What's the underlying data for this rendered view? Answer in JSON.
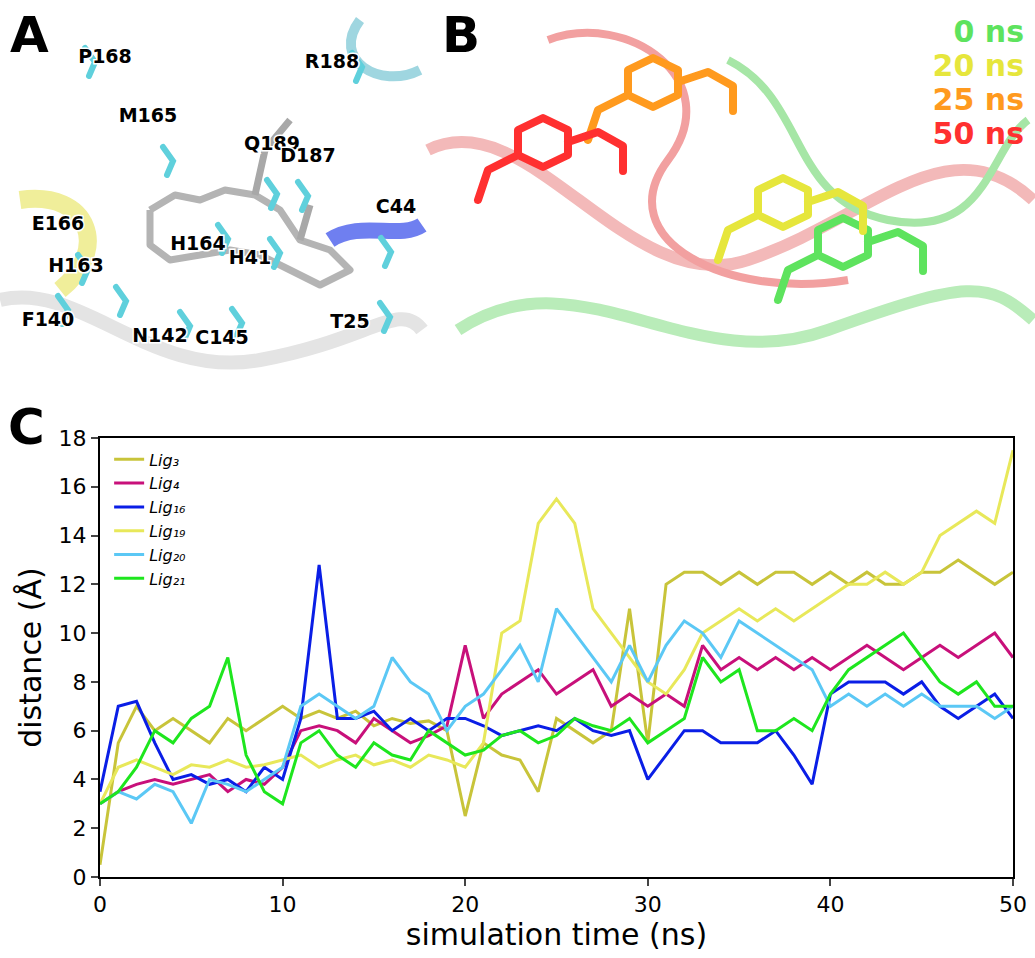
{
  "panels": {
    "A": {
      "letter": "A",
      "residues": [
        "P168",
        "R188",
        "M165",
        "Q189",
        "D187",
        "C44",
        "E166",
        "H164",
        "H41",
        "H163",
        "F140",
        "N142",
        "C145",
        "T25"
      ]
    },
    "B": {
      "letter": "B",
      "frames": [
        {
          "label": "0 ns",
          "color": "#5ee35e"
        },
        {
          "label": "20 ns",
          "color": "#e6e63c"
        },
        {
          "label": "25 ns",
          "color": "#ff9a1e"
        },
        {
          "label": "50 ns",
          "color": "#ff3030"
        }
      ]
    },
    "C": {
      "letter": "C"
    }
  },
  "chart_data": {
    "type": "line",
    "x_label": "simulation time (ns)",
    "y_label": "distance (Å)",
    "xlim": [
      0,
      50
    ],
    "xticks": [
      0,
      10,
      20,
      30,
      40,
      50
    ],
    "ylim": [
      0,
      18
    ],
    "yticks": [
      0,
      2,
      4,
      6,
      8,
      10,
      12,
      14,
      16,
      18
    ],
    "legend": "top left",
    "x": [
      0,
      1,
      2,
      3,
      4,
      5,
      6,
      7,
      8,
      9,
      10,
      11,
      12,
      13,
      14,
      15,
      16,
      17,
      18,
      19,
      20,
      21,
      22,
      23,
      24,
      25,
      26,
      27,
      28,
      29,
      30,
      31,
      32,
      33,
      34,
      35,
      36,
      37,
      38,
      39,
      40,
      41,
      42,
      43,
      44,
      45,
      46,
      47,
      48,
      49,
      50
    ],
    "series": [
      {
        "name": "Lig₃",
        "color": "#c8c43a",
        "values": [
          0.5,
          5.5,
          7.0,
          6.0,
          6.5,
          6.0,
          5.5,
          6.5,
          6.0,
          6.5,
          7.0,
          6.5,
          6.8,
          6.5,
          6.8,
          6.2,
          6.5,
          6.3,
          6.4,
          6.0,
          2.5,
          5.5,
          5.0,
          4.8,
          3.5,
          6.5,
          6.0,
          5.5,
          6.0,
          11.0,
          5.5,
          12.0,
          12.5,
          12.5,
          12.0,
          12.5,
          12.0,
          12.5,
          12.5,
          12.0,
          12.5,
          12.0,
          12.5,
          12.0,
          12.0,
          12.5,
          12.5,
          13.0,
          12.5,
          12.0,
          12.5
        ]
      },
      {
        "name": "Lig₄",
        "color": "#c8107a",
        "values": [
          3.0,
          3.5,
          3.8,
          4.0,
          3.8,
          4.0,
          4.2,
          3.5,
          4.0,
          3.8,
          4.5,
          6.0,
          6.2,
          6.0,
          5.5,
          6.5,
          6.0,
          5.5,
          5.8,
          6.2,
          9.5,
          6.5,
          7.5,
          8.0,
          8.5,
          7.5,
          8.0,
          8.5,
          7.0,
          7.5,
          7.0,
          7.5,
          7.0,
          9.5,
          8.5,
          9.0,
          8.5,
          9.0,
          8.5,
          9.0,
          8.5,
          9.0,
          9.5,
          9.0,
          8.5,
          9.0,
          9.5,
          9.0,
          9.5,
          10.0,
          9.0
        ]
      },
      {
        "name": "Lig₁₆",
        "color": "#0a1ee6",
        "values": [
          3.5,
          7.0,
          7.2,
          5.5,
          4.0,
          4.2,
          3.8,
          4.0,
          3.5,
          4.5,
          4.0,
          6.5,
          12.8,
          6.5,
          6.5,
          6.8,
          6.0,
          6.5,
          6.0,
          6.5,
          6.5,
          6.2,
          5.8,
          6.0,
          6.2,
          6.0,
          6.5,
          6.0,
          5.8,
          6.0,
          4.0,
          5.0,
          6.0,
          6.0,
          5.5,
          5.5,
          5.5,
          6.0,
          5.0,
          3.8,
          7.5,
          8.0,
          8.0,
          8.0,
          7.5,
          8.0,
          7.0,
          6.5,
          7.0,
          7.5,
          6.5
        ]
      },
      {
        "name": "Lig₁₉",
        "color": "#e8e85a",
        "values": [
          3.0,
          4.5,
          4.8,
          4.5,
          4.2,
          4.6,
          4.5,
          4.8,
          4.5,
          4.6,
          4.8,
          5.0,
          4.5,
          4.8,
          5.0,
          4.6,
          4.8,
          4.5,
          5.0,
          4.8,
          4.5,
          5.5,
          10.0,
          10.5,
          14.5,
          15.5,
          14.5,
          11.0,
          10.0,
          9.0,
          8.0,
          7.5,
          8.5,
          10.0,
          10.5,
          11.0,
          10.5,
          11.0,
          10.5,
          11.0,
          11.5,
          12.0,
          12.0,
          12.5,
          12.0,
          12.5,
          14.0,
          14.5,
          15.0,
          14.5,
          17.5
        ]
      },
      {
        "name": "Lig₂₀",
        "color": "#5bc8f5",
        "values": [
          3.0,
          3.5,
          3.2,
          3.8,
          3.5,
          2.2,
          4.0,
          3.8,
          3.5,
          4.0,
          4.5,
          7.0,
          7.5,
          7.0,
          6.5,
          7.0,
          9.0,
          8.0,
          7.5,
          6.0,
          7.0,
          7.5,
          8.5,
          9.5,
          8.0,
          11.0,
          10.0,
          9.0,
          8.0,
          9.5,
          8.0,
          9.5,
          10.5,
          10.0,
          9.0,
          10.5,
          10.0,
          9.5,
          9.0,
          8.5,
          7.0,
          7.5,
          7.0,
          7.5,
          7.0,
          7.5,
          7.0,
          7.0,
          7.0,
          6.5,
          7.0
        ]
      },
      {
        "name": "Lig₂₁",
        "color": "#1ee61e",
        "values": [
          3.0,
          3.5,
          4.5,
          6.0,
          5.5,
          6.5,
          7.0,
          9.0,
          5.0,
          3.5,
          3.0,
          5.5,
          6.0,
          5.0,
          4.5,
          5.5,
          5.0,
          4.8,
          6.0,
          5.5,
          5.0,
          5.2,
          5.8,
          6.0,
          5.5,
          5.8,
          6.5,
          6.2,
          6.0,
          6.5,
          5.5,
          6.0,
          6.5,
          9.0,
          8.0,
          8.5,
          6.0,
          6.0,
          6.5,
          6.0,
          7.5,
          8.5,
          9.0,
          9.5,
          10.0,
          9.0,
          8.0,
          7.5,
          8.0,
          7.0,
          7.0
        ]
      }
    ]
  }
}
